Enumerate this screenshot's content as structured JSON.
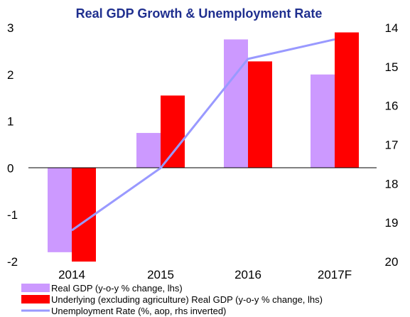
{
  "chart_data": {
    "type": "bar",
    "title": "Real GDP Growth & Unemployment Rate",
    "categories": [
      "2014",
      "2015",
      "2016",
      "2017F"
    ],
    "y_left": {
      "ticks": [
        "3",
        "2",
        "1",
        "0",
        "-1",
        "-2"
      ],
      "min": -2,
      "max": 3
    },
    "y_right": {
      "inverted": true,
      "ticks": [
        "14",
        "15",
        "16",
        "17",
        "18",
        "19",
        "20"
      ],
      "min": 14,
      "max": 20
    },
    "series": [
      {
        "name": "Real GDP (y-o-y % change, lhs)",
        "type": "bar",
        "axis": "left",
        "color": "#cc99ff",
        "values": [
          -1.8,
          0.75,
          2.75,
          2.0
        ]
      },
      {
        "name": "Underlying (excluding agriculture) Real GDP (y-o-y % change, lhs)",
        "type": "bar",
        "axis": "left",
        "color": "#ff0000",
        "values": [
          -2.0,
          1.55,
          2.28,
          2.9
        ]
      },
      {
        "name": "Unemployment Rate (%, aop, rhs inverted)",
        "type": "line",
        "axis": "right",
        "color": "#9999ff",
        "values": [
          19.2,
          17.6,
          14.8,
          14.3
        ]
      }
    ],
    "grid": false,
    "legend_position": "bottom-left"
  }
}
